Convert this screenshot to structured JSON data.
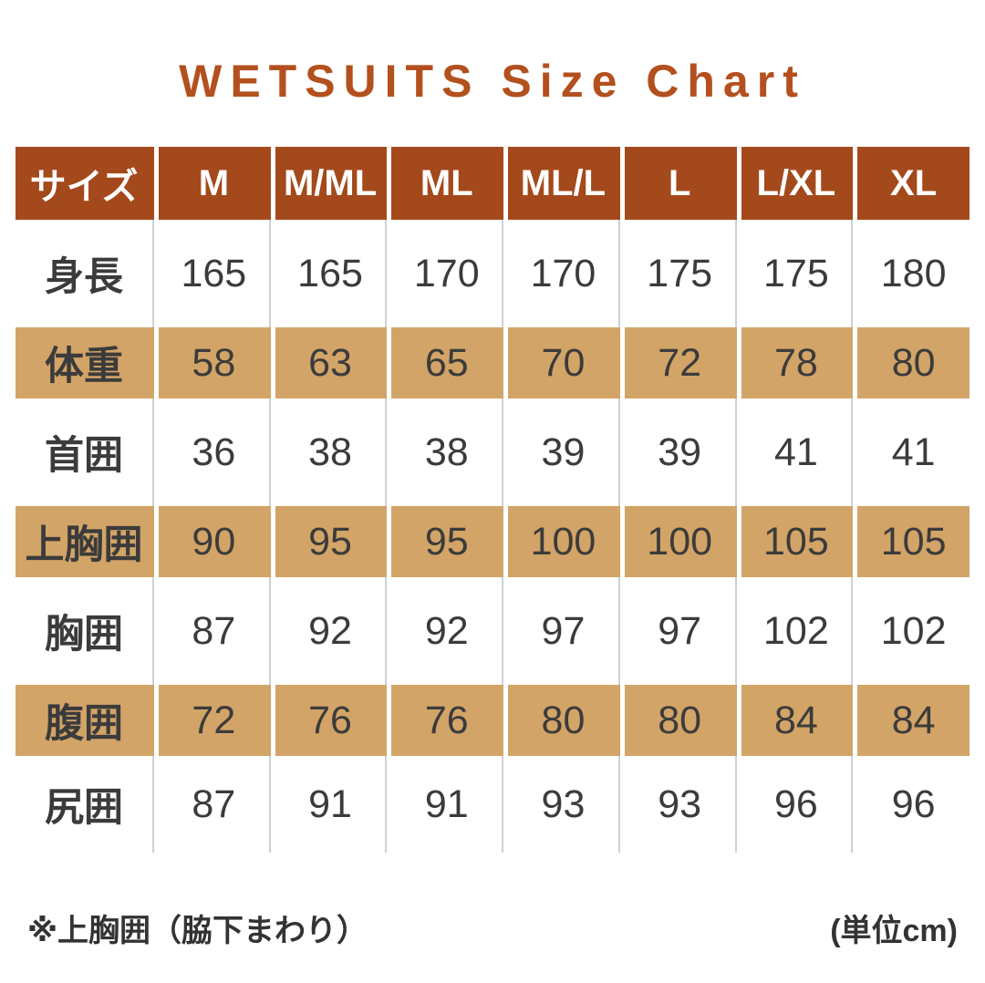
{
  "title": "WETSUITS Size Chart",
  "chart_data": {
    "type": "table",
    "title": "WETSUITS Size Chart",
    "columns": [
      "サイズ",
      "M",
      "M/ML",
      "ML",
      "ML/L",
      "L",
      "L/XL",
      "XL"
    ],
    "rows": [
      [
        "身長",
        165,
        165,
        170,
        170,
        175,
        175,
        180
      ],
      [
        "体重",
        58,
        63,
        65,
        70,
        72,
        78,
        80
      ],
      [
        "首囲",
        36,
        38,
        38,
        39,
        39,
        41,
        41
      ],
      [
        "上胸囲",
        90,
        95,
        95,
        100,
        100,
        105,
        105
      ],
      [
        "胸囲",
        87,
        92,
        92,
        97,
        97,
        102,
        102
      ],
      [
        "腹囲",
        72,
        76,
        76,
        80,
        80,
        84,
        84
      ],
      [
        "尻囲",
        87,
        91,
        91,
        93,
        93,
        96,
        96
      ]
    ],
    "highlight_rows": [
      1,
      3,
      5
    ],
    "unit": "cm"
  },
  "footnotes": {
    "left": "※上胸囲（脇下まわり）",
    "right": "(単位cm)"
  },
  "colors": {
    "title-color": "#b3501e",
    "header-bg": "#a4491b",
    "header-text": "#ffffff",
    "row-highlight-bg": "#d3a467",
    "body-text": "#3b3b3b",
    "separator": "#ccd2d4",
    "note-text": "#333333"
  }
}
